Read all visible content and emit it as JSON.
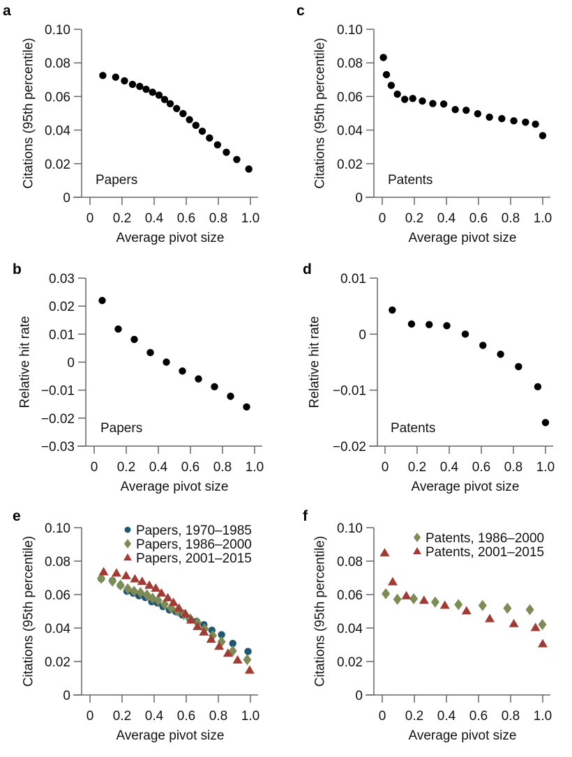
{
  "chart_data": [
    {
      "panel": "a",
      "type": "scatter",
      "title": "",
      "annotation": "Papers",
      "xlabel": "Average pivot size",
      "ylabel": "Citations (95th percentile)",
      "xlim": [
        0,
        1.0
      ],
      "ylim": [
        0,
        0.1
      ],
      "xticks": [
        "0",
        "0.2",
        "0.4",
        "0.6",
        "0.8",
        "1.0"
      ],
      "xtick_values": [
        0,
        0.2,
        0.4,
        0.6,
        0.8,
        1.0
      ],
      "yticks": [
        "0",
        "0.02",
        "0.04",
        "0.06",
        "0.08",
        "0.10"
      ],
      "ytick_values": [
        0,
        0.02,
        0.04,
        0.06,
        0.08,
        0.1
      ],
      "grid": false,
      "series": [
        {
          "name": "Papers",
          "marker": "circle",
          "color": "#000000",
          "x": [
            0.08,
            0.16,
            0.215,
            0.265,
            0.31,
            0.35,
            0.39,
            0.43,
            0.465,
            0.5,
            0.54,
            0.58,
            0.62,
            0.66,
            0.7,
            0.745,
            0.795,
            0.85,
            0.915,
            0.99
          ],
          "y": [
            0.0725,
            0.0715,
            0.0693,
            0.0672,
            0.066,
            0.0643,
            0.0625,
            0.0608,
            0.0582,
            0.0557,
            0.0528,
            0.0498,
            0.0462,
            0.0428,
            0.0393,
            0.0353,
            0.0312,
            0.0268,
            0.0225,
            0.0168
          ]
        }
      ]
    },
    {
      "panel": "c",
      "type": "scatter",
      "title": "",
      "annotation": "Patents",
      "xlabel": "Average pivot size",
      "ylabel": "Citations (95th percentile)",
      "xlim": [
        0,
        1.0
      ],
      "ylim": [
        0,
        0.1
      ],
      "xticks": [
        "0",
        "0.2",
        "0.4",
        "0.6",
        "0.8",
        "1.0"
      ],
      "xtick_values": [
        0,
        0.2,
        0.4,
        0.6,
        0.8,
        1.0
      ],
      "yticks": [
        "0",
        "0.02",
        "0.04",
        "0.06",
        "0.08",
        "0.10"
      ],
      "ytick_values": [
        0,
        0.02,
        0.04,
        0.06,
        0.08,
        0.1
      ],
      "grid": false,
      "series": [
        {
          "name": "Patents",
          "marker": "circle",
          "color": "#000000",
          "x": [
            0.007,
            0.026,
            0.056,
            0.094,
            0.14,
            0.19,
            0.25,
            0.315,
            0.383,
            0.455,
            0.523,
            0.595,
            0.668,
            0.745,
            0.82,
            0.893,
            0.955,
            1.0
          ],
          "y": [
            0.0832,
            0.073,
            0.0666,
            0.0614,
            0.0583,
            0.0588,
            0.0573,
            0.0558,
            0.0555,
            0.0522,
            0.0518,
            0.0497,
            0.0477,
            0.0468,
            0.0455,
            0.0447,
            0.0435,
            0.0367
          ]
        }
      ]
    },
    {
      "panel": "b",
      "type": "scatter",
      "title": "",
      "annotation": "Papers",
      "xlabel": "Average pivot size",
      "ylabel": "Relative hit rate",
      "xlim": [
        0,
        1.0
      ],
      "ylim": [
        -0.03,
        0.03
      ],
      "xticks": [
        "0",
        "0.2",
        "0.4",
        "0.6",
        "0.8",
        "1.0"
      ],
      "xtick_values": [
        0,
        0.2,
        0.4,
        0.6,
        0.8,
        1.0
      ],
      "yticks": [
        "−0.03",
        "−0.02",
        "−0.01",
        "0",
        "0.01",
        "0.02",
        "0.03"
      ],
      "ytick_values": [
        -0.03,
        -0.02,
        -0.01,
        0,
        0.01,
        0.02,
        0.03
      ],
      "grid": false,
      "series": [
        {
          "name": "Papers",
          "marker": "circle",
          "color": "#000000",
          "x": [
            0.05,
            0.15,
            0.25,
            0.35,
            0.45,
            0.55,
            0.65,
            0.75,
            0.85,
            0.95
          ],
          "y": [
            0.022,
            0.0118,
            0.0081,
            0.0034,
            0.0,
            -0.0032,
            -0.006,
            -0.0088,
            -0.0122,
            -0.016
          ]
        }
      ]
    },
    {
      "panel": "d",
      "type": "scatter",
      "title": "",
      "annotation": "Patents",
      "xlabel": "Average pivot size",
      "ylabel": "Relative hit rate",
      "xlim": [
        0,
        1.0
      ],
      "ylim": [
        -0.02,
        0.01
      ],
      "xticks": [
        "0",
        "0.2",
        "0.4",
        "0.6",
        "0.8",
        "1.0"
      ],
      "xtick_values": [
        0,
        0.2,
        0.4,
        0.6,
        0.8,
        1.0
      ],
      "yticks": [
        "−0.02",
        "−0.01",
        "0",
        "0.01"
      ],
      "ytick_values": [
        -0.02,
        -0.01,
        0,
        0.01
      ],
      "grid": false,
      "series": [
        {
          "name": "Patents",
          "marker": "circle",
          "color": "#000000",
          "x": [
            0.045,
            0.165,
            0.275,
            0.385,
            0.5,
            0.61,
            0.72,
            0.832,
            0.952,
            1.0
          ],
          "y": [
            0.0043,
            0.0018,
            0.0017,
            0.0015,
            0.0,
            -0.002,
            -0.0036,
            -0.0058,
            -0.0094,
            -0.0158
          ]
        }
      ]
    },
    {
      "panel": "e",
      "type": "scatter",
      "title": "",
      "xlabel": "Average pivot size",
      "ylabel": "Citations (95th percentile)",
      "xlim": [
        0,
        1.0
      ],
      "ylim": [
        0,
        0.1
      ],
      "xticks": [
        "0",
        "0.2",
        "0.4",
        "0.6",
        "0.8",
        "1.0"
      ],
      "xtick_values": [
        0,
        0.2,
        0.4,
        0.6,
        0.8,
        1.0
      ],
      "yticks": [
        "0",
        "0.02",
        "0.04",
        "0.06",
        "0.08",
        "0.10"
      ],
      "ytick_values": [
        0,
        0.02,
        0.04,
        0.06,
        0.08,
        0.1
      ],
      "grid": false,
      "legend": "top-right",
      "series": [
        {
          "name": "Papers, 1970–1985",
          "marker": "circle",
          "color": "#1f5673",
          "x": [
            0.07,
            0.14,
            0.19,
            0.23,
            0.27,
            0.305,
            0.345,
            0.385,
            0.42,
            0.455,
            0.495,
            0.535,
            0.575,
            0.62,
            0.665,
            0.71,
            0.76,
            0.82,
            0.89,
            0.985
          ],
          "y": [
            0.0695,
            0.0683,
            0.0655,
            0.062,
            0.0608,
            0.0593,
            0.0582,
            0.0557,
            0.055,
            0.0528,
            0.0508,
            0.0498,
            0.0478,
            0.0458,
            0.044,
            0.042,
            0.0387,
            0.036,
            0.0308,
            0.026
          ]
        },
        {
          "name": "Papers, 1986–2000",
          "marker": "diamond",
          "color": "#7d8c55",
          "x": [
            0.07,
            0.14,
            0.19,
            0.235,
            0.275,
            0.315,
            0.355,
            0.39,
            0.425,
            0.465,
            0.505,
            0.545,
            0.585,
            0.625,
            0.67,
            0.715,
            0.765,
            0.82,
            0.89,
            0.98
          ],
          "y": [
            0.0697,
            0.068,
            0.0657,
            0.0635,
            0.062,
            0.0612,
            0.0598,
            0.0578,
            0.0565,
            0.0542,
            0.052,
            0.0502,
            0.048,
            0.0455,
            0.0432,
            0.0395,
            0.0355,
            0.0318,
            0.0263,
            0.0211
          ]
        },
        {
          "name": "Papers, 2001–2015",
          "marker": "triangle",
          "color": "#a23b33",
          "x": [
            0.085,
            0.165,
            0.225,
            0.28,
            0.325,
            0.37,
            0.41,
            0.445,
            0.485,
            0.52,
            0.555,
            0.595,
            0.63,
            0.67,
            0.71,
            0.755,
            0.805,
            0.86,
            0.92,
            0.995
          ],
          "y": [
            0.0735,
            0.0728,
            0.0712,
            0.0693,
            0.0678,
            0.0655,
            0.0637,
            0.0608,
            0.058,
            0.0552,
            0.0518,
            0.0485,
            0.0447,
            0.0408,
            0.0375,
            0.0332,
            0.029,
            0.0248,
            0.0208,
            0.0147
          ]
        }
      ]
    },
    {
      "panel": "f",
      "type": "scatter",
      "title": "",
      "xlabel": "Average pivot size",
      "ylabel": "Citations (95th percentile)",
      "xlim": [
        0,
        1.0
      ],
      "ylim": [
        0,
        0.1
      ],
      "xticks": [
        "0",
        "0.2",
        "0.4",
        "0.6",
        "0.8",
        "1.0"
      ],
      "xtick_values": [
        0,
        0.2,
        0.4,
        0.6,
        0.8,
        1.0
      ],
      "yticks": [
        "0",
        "0.02",
        "0.04",
        "0.06",
        "0.08",
        "0.10"
      ],
      "ytick_values": [
        0,
        0.02,
        0.04,
        0.06,
        0.08,
        0.1
      ],
      "grid": false,
      "legend": "top-right",
      "series": [
        {
          "name": "Patents, 1986–2000",
          "marker": "diamond",
          "color": "#7d8c55",
          "x": [
            0.022,
            0.094,
            0.196,
            0.33,
            0.475,
            0.625,
            0.78,
            0.92,
            0.998
          ],
          "y": [
            0.0605,
            0.0572,
            0.0575,
            0.0555,
            0.054,
            0.0535,
            0.0518,
            0.051,
            0.0421
          ]
        },
        {
          "name": "Patents, 2001–2015",
          "marker": "triangle",
          "color": "#a23b33",
          "x": [
            0.015,
            0.065,
            0.15,
            0.26,
            0.39,
            0.525,
            0.67,
            0.82,
            0.955,
            1.0
          ],
          "y": [
            0.0848,
            0.0675,
            0.0592,
            0.0565,
            0.0535,
            0.0502,
            0.0455,
            0.0425,
            0.0402,
            0.0305
          ]
        }
      ]
    }
  ]
}
